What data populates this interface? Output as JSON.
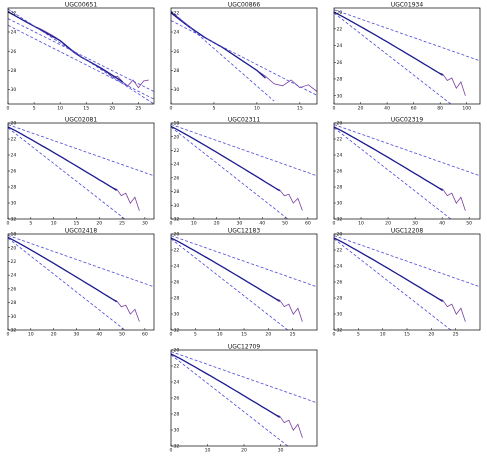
{
  "chart_data": [
    {
      "type": "line",
      "title": "UGC00651",
      "xticks": [
        0,
        5,
        10,
        15,
        20,
        25
      ],
      "yticks": [
        22,
        24,
        26,
        28,
        30
      ],
      "xlim": [
        0,
        28
      ],
      "ylim": [
        21.5,
        31.5
      ],
      "series": [
        {
          "kind": "obs",
          "x": [
            0,
            1,
            2,
            3,
            4,
            5,
            6,
            7,
            8,
            9,
            10,
            11,
            12,
            13,
            14,
            15,
            16,
            17,
            18,
            19,
            20,
            21,
            22,
            23,
            24,
            25,
            26,
            27
          ],
          "y": [
            21.8,
            22.2,
            22.5,
            22.8,
            23.1,
            23.4,
            23.6,
            23.9,
            24.2,
            24.5,
            24.9,
            25.4,
            25.9,
            26.3,
            26.6,
            26.9,
            27.2,
            27.5,
            27.9,
            28.2,
            28.7,
            28.6,
            29.2,
            29.6,
            29.0,
            29.8,
            29.1,
            29.0
          ]
        },
        {
          "kind": "model",
          "x": [
            0,
            2,
            4,
            6,
            8,
            10,
            12,
            14,
            16,
            18,
            20,
            22
          ],
          "y": [
            21.9,
            22.5,
            23.1,
            23.7,
            24.3,
            24.9,
            25.8,
            26.6,
            27.2,
            27.8,
            28.5,
            29.2
          ]
        },
        {
          "kind": "fit",
          "x": [
            0,
            28
          ],
          "y": [
            21.6,
            31.5
          ]
        },
        {
          "kind": "fit",
          "x": [
            0,
            28
          ],
          "y": [
            22.6,
            30.2
          ]
        },
        {
          "kind": "fit",
          "x": [
            0,
            28
          ],
          "y": [
            23.3,
            31.0
          ]
        }
      ]
    },
    {
      "type": "line",
      "title": "UGC00866",
      "xticks": [
        0,
        5,
        10,
        15
      ],
      "yticks": [
        22,
        24,
        26,
        28,
        30
      ],
      "xlim": [
        0,
        17
      ],
      "ylim": [
        21.5,
        31.5
      ],
      "series": [
        {
          "kind": "obs",
          "x": [
            0,
            1,
            2,
            3,
            4,
            5,
            6,
            7,
            8,
            9,
            10,
            11,
            12,
            13,
            14,
            15,
            16,
            17
          ],
          "y": [
            21.9,
            22.6,
            23.3,
            24.0,
            24.6,
            25.1,
            25.6,
            26.2,
            26.8,
            27.4,
            28.0,
            28.6,
            29.4,
            29.6,
            29.0,
            29.8,
            29.5,
            30.2
          ]
        },
        {
          "kind": "model",
          "x": [
            0,
            2,
            4,
            6,
            8,
            10,
            11
          ],
          "y": [
            22.0,
            23.4,
            24.6,
            25.6,
            26.8,
            28.0,
            28.8
          ]
        },
        {
          "kind": "fit",
          "x": [
            0,
            12
          ],
          "y": [
            21.8,
            31.2
          ]
        },
        {
          "kind": "fit",
          "x": [
            0,
            17
          ],
          "y": [
            22.8,
            30.6
          ]
        }
      ]
    },
    {
      "type": "line",
      "title": "UGC01934",
      "xticks": [
        0,
        20,
        40,
        60,
        80,
        100
      ],
      "yticks": [
        20,
        22,
        24,
        26,
        28,
        30
      ],
      "xlim": [
        0,
        110
      ],
      "ylim": [
        19.5,
        31
      ]
    },
    {
      "type": "line",
      "title": "UGC02081",
      "xticks": [
        0,
        5,
        10,
        15,
        20,
        25,
        30
      ],
      "yticks": [
        20,
        22,
        24,
        26,
        28,
        30,
        32
      ],
      "xlim": [
        0,
        32
      ],
      "ylim": [
        20,
        32
      ]
    },
    {
      "type": "line",
      "title": "UGC02311",
      "xticks": [
        0,
        10,
        20,
        30,
        40,
        50,
        60
      ],
      "yticks": [
        18,
        20,
        22,
        24,
        26,
        28,
        30,
        32
      ],
      "xlim": [
        0,
        64
      ],
      "ylim": [
        18,
        32
      ]
    },
    {
      "type": "line",
      "title": "UGC02319",
      "xticks": [
        0,
        10,
        20,
        30,
        40,
        50
      ],
      "yticks": [
        20,
        22,
        24,
        26,
        28,
        30,
        32
      ],
      "xlim": [
        0,
        54
      ],
      "ylim": [
        20,
        32
      ]
    },
    {
      "type": "line",
      "title": "UGC02418",
      "xticks": [
        0,
        10,
        20,
        30,
        40,
        50,
        60
      ],
      "yticks": [
        18,
        20,
        22,
        24,
        26,
        28,
        30,
        32
      ],
      "xlim": [
        0,
        64
      ],
      "ylim": [
        18,
        32
      ]
    },
    {
      "type": "line",
      "title": "UGC12183",
      "xticks": [
        0,
        5,
        10,
        15,
        20,
        25
      ],
      "yticks": [
        20,
        22,
        24,
        26,
        28,
        30,
        32
      ],
      "xlim": [
        0,
        30
      ],
      "ylim": [
        20,
        32
      ]
    },
    {
      "type": "line",
      "title": "UGC12208",
      "xticks": [
        0,
        5,
        10,
        15,
        20,
        25
      ],
      "yticks": [
        20,
        22,
        24,
        26,
        28,
        30,
        32
      ],
      "xlim": [
        0,
        30
      ],
      "ylim": [
        20,
        32
      ]
    },
    {
      "type": "line",
      "title": "UGC12709",
      "xticks": [
        0,
        10,
        20,
        30
      ],
      "yticks": [
        20,
        22,
        24,
        26,
        28,
        30,
        32
      ],
      "xlim": [
        0,
        40
      ],
      "ylim": [
        20,
        32
      ]
    }
  ]
}
